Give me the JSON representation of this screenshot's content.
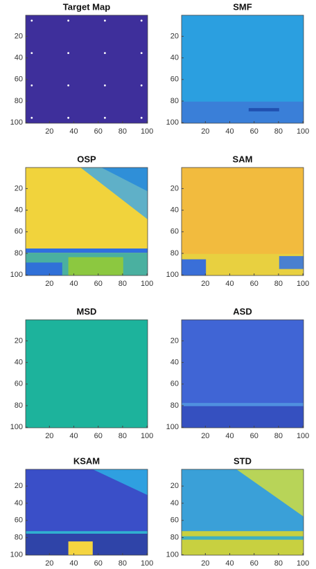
{
  "chart_data": [
    {
      "type": "image",
      "title": "Target Map",
      "xlim": [
        0.5,
        100.5
      ],
      "ylim": [
        0.5,
        100.5
      ],
      "y_reversed": true,
      "xticks": [
        20,
        40,
        60,
        80,
        100
      ],
      "yticks": [
        20,
        40,
        60,
        80,
        100
      ]
    },
    {
      "type": "image",
      "title": "SMF",
      "xlim": [
        0.5,
        100.5
      ],
      "ylim": [
        0.5,
        100.5
      ],
      "y_reversed": true,
      "xticks": [
        20,
        40,
        60,
        80,
        100
      ],
      "yticks": [
        20,
        40,
        60,
        80,
        100
      ]
    },
    {
      "type": "image",
      "title": "OSP",
      "xlim": [
        0.5,
        100.5
      ],
      "ylim": [
        0.5,
        100.5
      ],
      "y_reversed": true,
      "xticks": [
        20,
        40,
        60,
        80,
        100
      ],
      "yticks": [
        20,
        40,
        60,
        80,
        100
      ]
    },
    {
      "type": "image",
      "title": "SAM",
      "xlim": [
        0.5,
        100.5
      ],
      "ylim": [
        0.5,
        100.5
      ],
      "y_reversed": true,
      "xticks": [
        20,
        40,
        60,
        80,
        100
      ],
      "yticks": [
        20,
        40,
        60,
        80,
        100
      ]
    },
    {
      "type": "image",
      "title": "MSD",
      "xlim": [
        0.5,
        100.5
      ],
      "ylim": [
        0.5,
        100.5
      ],
      "y_reversed": true,
      "xticks": [
        20,
        40,
        60,
        80,
        100
      ],
      "yticks": [
        20,
        40,
        60,
        80,
        100
      ]
    },
    {
      "type": "image",
      "title": "ASD",
      "xlim": [
        0.5,
        100.5
      ],
      "ylim": [
        0.5,
        100.5
      ],
      "y_reversed": true,
      "xticks": [
        20,
        40,
        60,
        80,
        100
      ],
      "yticks": [
        20,
        40,
        60,
        80,
        100
      ]
    },
    {
      "type": "image",
      "title": "KSAM",
      "xlim": [
        0.5,
        100.5
      ],
      "ylim": [
        0.5,
        100.5
      ],
      "y_reversed": true,
      "xticks": [
        20,
        40,
        60,
        80,
        100
      ],
      "yticks": [
        20,
        40,
        60,
        80,
        100
      ]
    },
    {
      "type": "image",
      "title": "STD",
      "xlim": [
        0.5,
        100.5
      ],
      "ylim": [
        0.5,
        100.5
      ],
      "y_reversed": true,
      "xticks": [
        20,
        40,
        60,
        80,
        100
      ],
      "yticks": [
        20,
        40,
        60,
        80,
        100
      ]
    }
  ]
}
